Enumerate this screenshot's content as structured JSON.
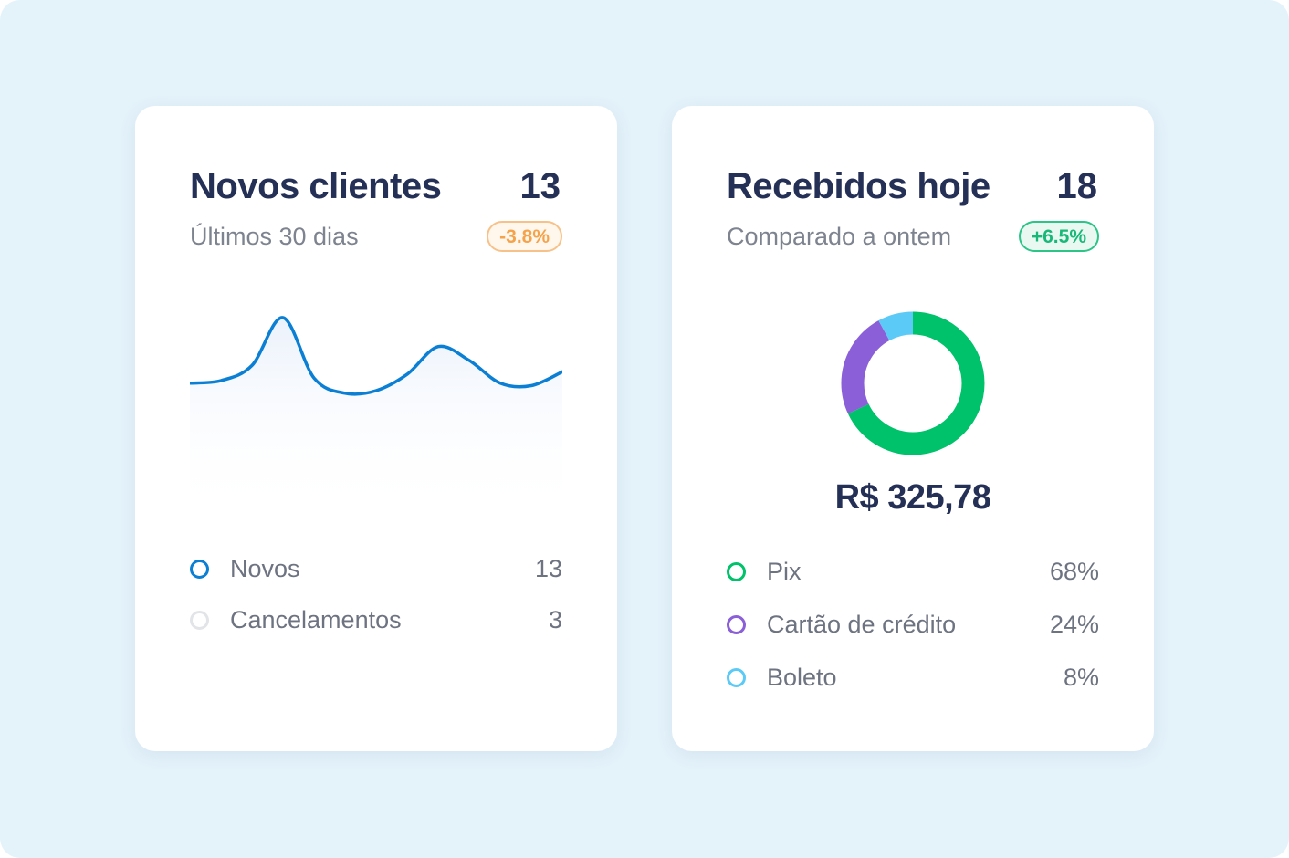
{
  "cards": {
    "new_clients": {
      "title": "Novos clientes",
      "count": "13",
      "subtitle": "Últimos 30 dias",
      "badge": "-3.8%",
      "line_color": "#0a7fd4",
      "legend": [
        {
          "label": "Novos",
          "value": "13",
          "color": "#0a7fd4"
        },
        {
          "label": "Cancelamentos",
          "value": "3",
          "color": "#e3e4e7"
        }
      ]
    },
    "received_today": {
      "title": "Recebidos hoje",
      "count": "18",
      "subtitle": "Comparado a ontem",
      "badge": "+6.5%",
      "amount": "R$ 325,78",
      "legend": [
        {
          "label": "Pix",
          "value": "68%",
          "color": "#00c26a"
        },
        {
          "label": "Cartão de crédito",
          "value": "24%",
          "color": "#8a5fd8"
        },
        {
          "label": "Boleto",
          "value": "8%",
          "color": "#5ccaf7"
        }
      ]
    }
  },
  "chart_data": [
    {
      "type": "area",
      "x": [
        0,
        1,
        2,
        3,
        4,
        5,
        6,
        7,
        8,
        9,
        10,
        11,
        12
      ],
      "series": [
        {
          "values": [
            0.48,
            0.5,
            0.62,
            1.0,
            0.52,
            0.4,
            0.42,
            0.55,
            0.77,
            0.66,
            0.48,
            0.46,
            0.57
          ]
        }
      ]
    },
    {
      "type": "pie",
      "categories": [
        "Pix",
        "Cartão de crédito",
        "Boleto"
      ],
      "values": [
        68,
        24,
        8
      ],
      "colors": [
        "#00c26a",
        "#8a5fd8",
        "#5ccaf7"
      ]
    }
  ]
}
